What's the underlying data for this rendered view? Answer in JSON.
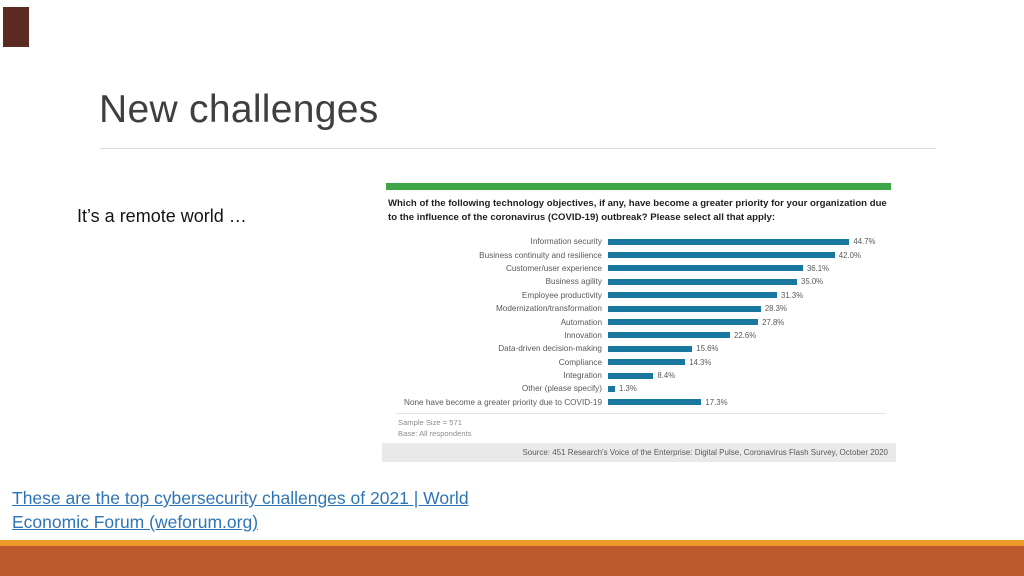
{
  "slide": {
    "title": "New challenges",
    "body_text": "It’s a remote world …",
    "link": {
      "text": "These are the top cybersecurity challenges of 2021 | World Economic Forum (weforum.org)"
    },
    "colors": {
      "link_blue": "#2E75B6",
      "corner_accent": "#5B2B22",
      "bottom_line": "#EC9A28",
      "bottom_band": "#BB5B2B",
      "title_gray": "#3F3F3F"
    }
  },
  "chart_data": {
    "type": "bar",
    "orientation": "horizontal",
    "title": "Which of the following technology objectives, if any, have become a greater priority for your organization due to the influence of the coronavirus (COVID-19) outbreak? Please select all that apply:",
    "categories": [
      "Information security",
      "Business continuity and resilience",
      "Customer/user experience",
      "Business agility",
      "Employee productivity",
      "Modernization/transformation",
      "Automation",
      "Innovation",
      "Data-driven decision-making",
      "Compliance",
      "Integration",
      "Other (please specify)",
      "None have become a greater priority due to COVID-19"
    ],
    "values": [
      44.7,
      42.0,
      36.1,
      35.0,
      31.3,
      28.3,
      27.8,
      22.6,
      15.6,
      14.3,
      8.4,
      1.3,
      17.3
    ],
    "value_labels": [
      "44.7%",
      "42.0%",
      "36.1%",
      "35.0%",
      "31.3%",
      "28.3%",
      "27.8%",
      "22.6%",
      "15.6%",
      "14.3%",
      "8.4%",
      "1.3%",
      "17.3%"
    ],
    "xlim": [
      0,
      50
    ],
    "unit": "%",
    "grid": false,
    "bar_color": "#1878A0",
    "top_accent_color": "#3DA649",
    "notes": [
      "Sample Size = 571",
      "Base: All respondents"
    ],
    "source": "Source: 451 Research's Voice of the Enterprise: Digital Pulse, Coronavirus Flash Survey, October 2020"
  }
}
